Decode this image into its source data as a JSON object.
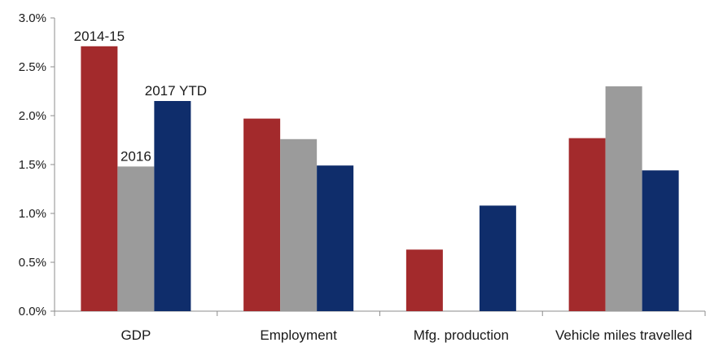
{
  "chart_data": {
    "type": "bar",
    "title": "",
    "xlabel": "",
    "ylabel": "",
    "categories": [
      "GDP",
      "Employment",
      "Mfg. production",
      "Vehicle miles travelled"
    ],
    "series": [
      {
        "name": "2014-15",
        "color": "#a32a2c",
        "values": [
          2.71,
          1.97,
          0.63,
          1.77
        ]
      },
      {
        "name": "2016",
        "color": "#9b9b9b",
        "values": [
          1.48,
          1.76,
          0.0,
          2.3
        ]
      },
      {
        "name": "2017 YTD",
        "color": "#0f2d6b",
        "values": [
          2.15,
          1.49,
          1.08,
          1.44
        ]
      }
    ],
    "ylim": [
      0,
      3.0
    ],
    "yticks": [
      0.0,
      0.5,
      1.0,
      1.5,
      2.0,
      2.5,
      3.0
    ],
    "ytick_labels": [
      "0.0%",
      "0.5%",
      "1.0%",
      "1.5%",
      "2.0%",
      "2.5%",
      "3.0%"
    ],
    "grid": false,
    "legend": "series names shown as labels above the GDP bars"
  }
}
